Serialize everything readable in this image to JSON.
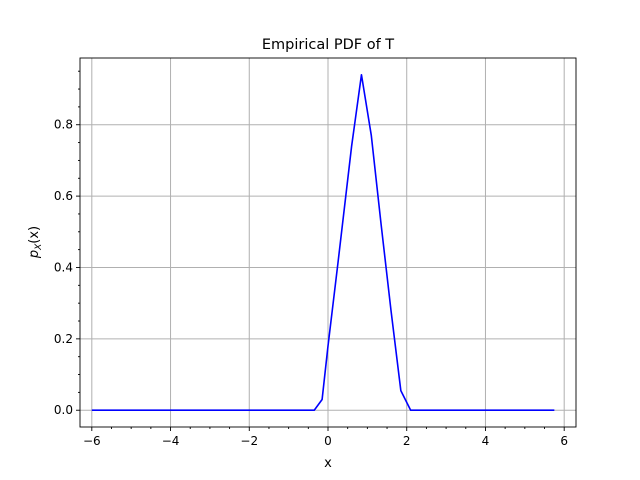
{
  "chart_data": {
    "type": "line",
    "title": "Empirical PDF of T",
    "xlabel": "x",
    "ylabel": "p_X(x)",
    "ylabel_parts": {
      "base": "p",
      "sub": "X",
      "arg": "(x)"
    },
    "xlim": [
      -6.3,
      6.3
    ],
    "ylim": [
      -0.047,
      0.987
    ],
    "xticks": [
      -6,
      -4,
      -2,
      0,
      2,
      4,
      6
    ],
    "xtick_labels": [
      "−6",
      "−4",
      "−2",
      "0",
      "2",
      "4",
      "6"
    ],
    "yticks": [
      0.0,
      0.2,
      0.4,
      0.6,
      0.8
    ],
    "ytick_labels": [
      "0.0",
      "0.2",
      "0.4",
      "0.6",
      "0.8"
    ],
    "grid": true,
    "series": [
      {
        "color": "#0000ff",
        "x": [
          -6.0,
          -5.75,
          -5.5,
          -5.25,
          -5.0,
          -4.75,
          -4.5,
          -4.25,
          -4.0,
          -3.75,
          -3.5,
          -3.25,
          -3.0,
          -2.75,
          -2.5,
          -2.25,
          -2.0,
          -1.75,
          -1.5,
          -1.25,
          -1.0,
          -0.75,
          -0.5,
          -0.35,
          -0.15,
          0.0,
          0.25,
          0.6,
          0.85,
          1.1,
          1.35,
          1.6,
          1.85,
          2.1,
          2.5,
          3.0,
          3.5,
          4.0,
          4.5,
          5.0,
          5.5,
          5.75
        ],
        "y": [
          0,
          0,
          0,
          0,
          0,
          0,
          0,
          0,
          0,
          0,
          0,
          0,
          0,
          0,
          0,
          0,
          0,
          0,
          0,
          0,
          0,
          0,
          0,
          0.0,
          0.03,
          0.18,
          0.41,
          0.74,
          0.94,
          0.77,
          0.52,
          0.28,
          0.055,
          0.0,
          0,
          0,
          0,
          0,
          0,
          0,
          0,
          0
        ]
      }
    ]
  }
}
